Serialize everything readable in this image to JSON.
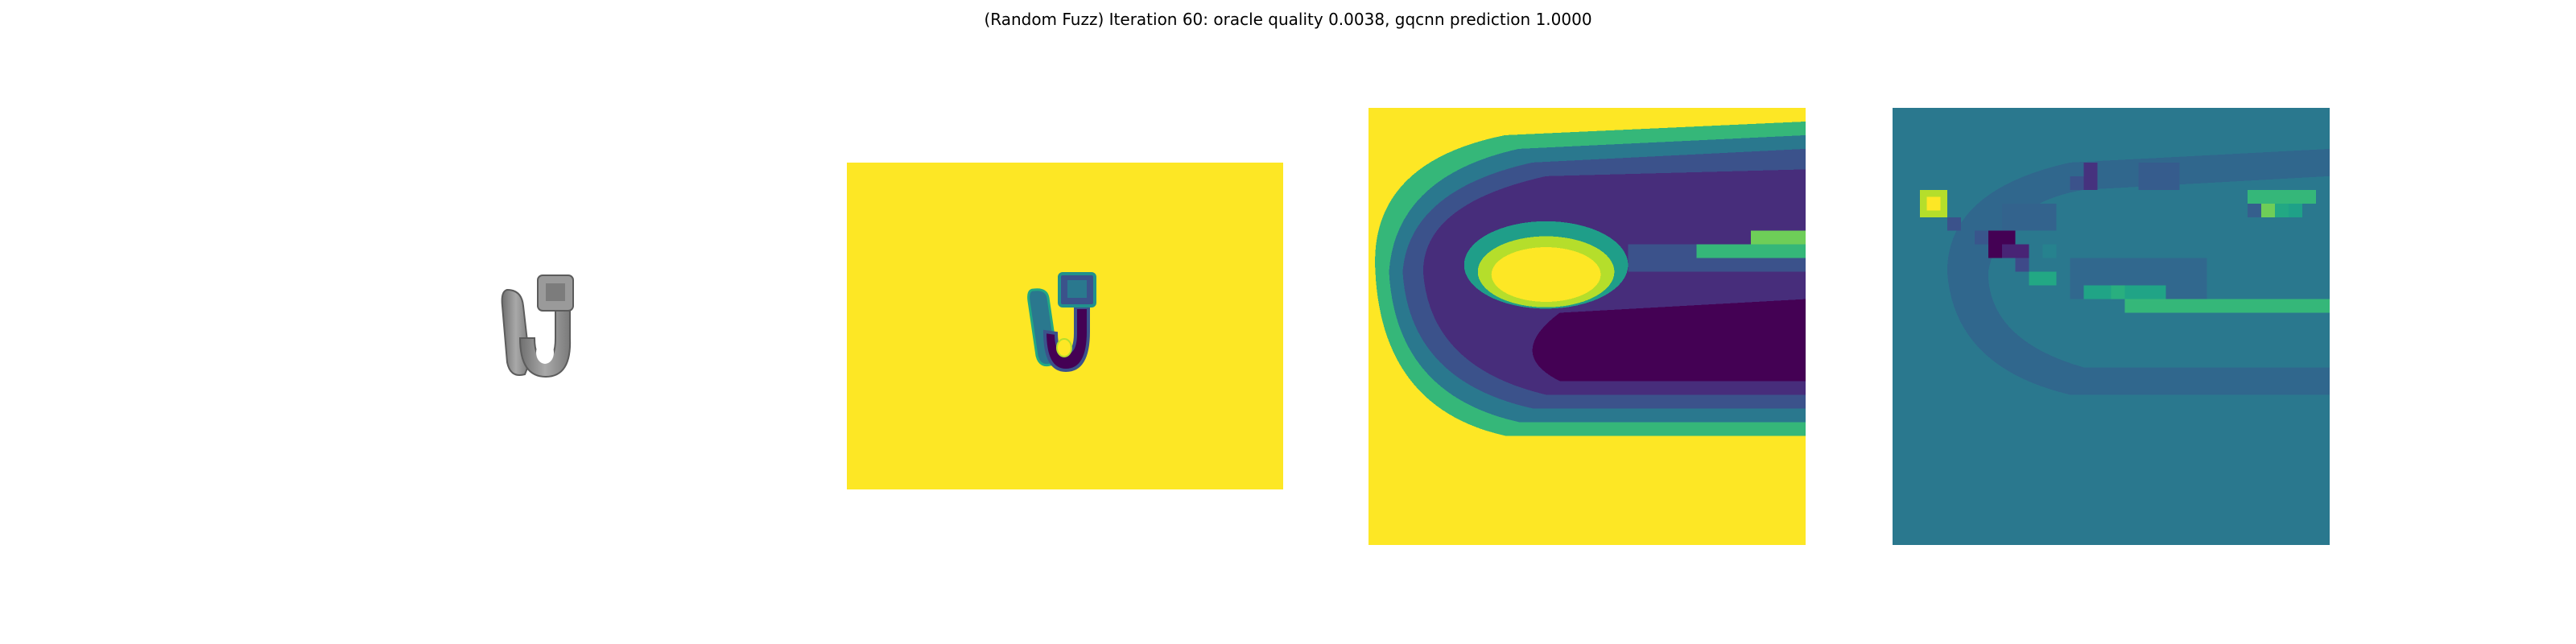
{
  "figure": {
    "title": "(Random Fuzz) Iteration 60: oracle quality 0.0038, gqcnn prediction 1.0000"
  },
  "panels": [
    {
      "name": "rendered-object-view",
      "colormap": "gray"
    },
    {
      "name": "depth-image",
      "colormap": "viridis"
    },
    {
      "name": "depth-crop-view",
      "colormap": "viridis"
    },
    {
      "name": "perturbation-heatmap",
      "colormap": "viridis"
    }
  ],
  "colors": {
    "viridis_yellow": "#fde725",
    "viridis_teal": "#2a788e",
    "viridis_green": "#22a884",
    "viridis_dark": "#440154",
    "viridis_indigo": "#3b528b",
    "object_gray": "#8a8a8a"
  }
}
